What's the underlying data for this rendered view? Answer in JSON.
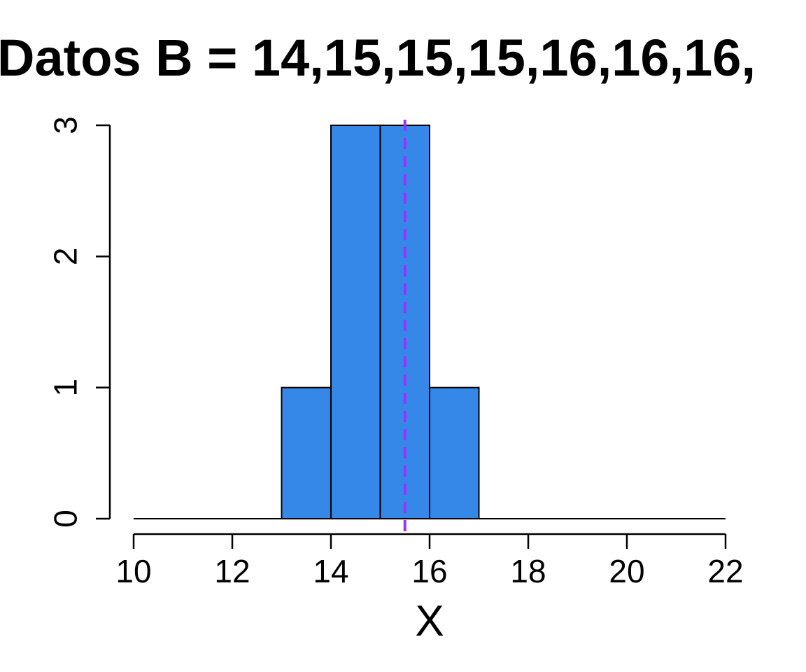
{
  "chart_data": {
    "type": "bar",
    "title": "Datos B = 14,15,15,15,16,16,16,",
    "xlabel": "X",
    "ylabel": "",
    "xlim": [
      10,
      22
    ],
    "ylim": [
      0,
      3
    ],
    "x_ticks": [
      10,
      12,
      14,
      16,
      18,
      20,
      22
    ],
    "y_ticks": [
      0,
      1,
      2,
      3
    ],
    "bins": [
      {
        "from": 13,
        "to": 14,
        "count": 1
      },
      {
        "from": 14,
        "to": 15,
        "count": 3
      },
      {
        "from": 15,
        "to": 16,
        "count": 3
      },
      {
        "from": 16,
        "to": 17,
        "count": 1
      }
    ],
    "mean_line": {
      "x": 15.5,
      "style": "dashed",
      "color": "#9b30ff"
    },
    "bar_color": "#3688e8",
    "grid": false,
    "legend": "none"
  }
}
